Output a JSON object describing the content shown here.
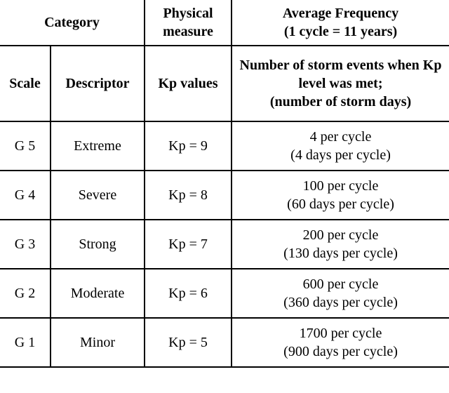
{
  "type": "table",
  "colors": {
    "border": "#000000",
    "background": "#ffffff",
    "text": "#000000"
  },
  "header": {
    "category": "Category",
    "physical": "Physical measure",
    "freq_l1": "Average Frequency",
    "freq_l2": "(1 cycle = 11 years)"
  },
  "subheader": {
    "scale": "Scale",
    "descriptor": "Descriptor",
    "kp": "Kp values",
    "events_l1": "Number of storm events when Kp level was met;",
    "events_l2": "(number of storm days)"
  },
  "rows": [
    {
      "scale": "G 5",
      "descriptor": "Extreme",
      "kp": "Kp = 9",
      "freq1": "4 per cycle",
      "freq2": "(4 days per cycle)"
    },
    {
      "scale": "G 4",
      "descriptor": "Severe",
      "kp": "Kp = 8",
      "freq1": "100 per cycle",
      "freq2": "(60 days per cycle)"
    },
    {
      "scale": "G 3",
      "descriptor": "Strong",
      "kp": "Kp = 7",
      "freq1": "200 per cycle",
      "freq2": "(130 days per cycle)"
    },
    {
      "scale": "G 2",
      "descriptor": "Moderate",
      "kp": "Kp = 6",
      "freq1": "600 per cycle",
      "freq2": "(360 days per cycle)"
    },
    {
      "scale": "G 1",
      "descriptor": "Minor",
      "kp": "Kp = 5",
      "freq1": "1700 per cycle",
      "freq2": "(900 days per cycle)"
    }
  ],
  "fontsizes": {
    "header": 20,
    "cell": 20
  }
}
